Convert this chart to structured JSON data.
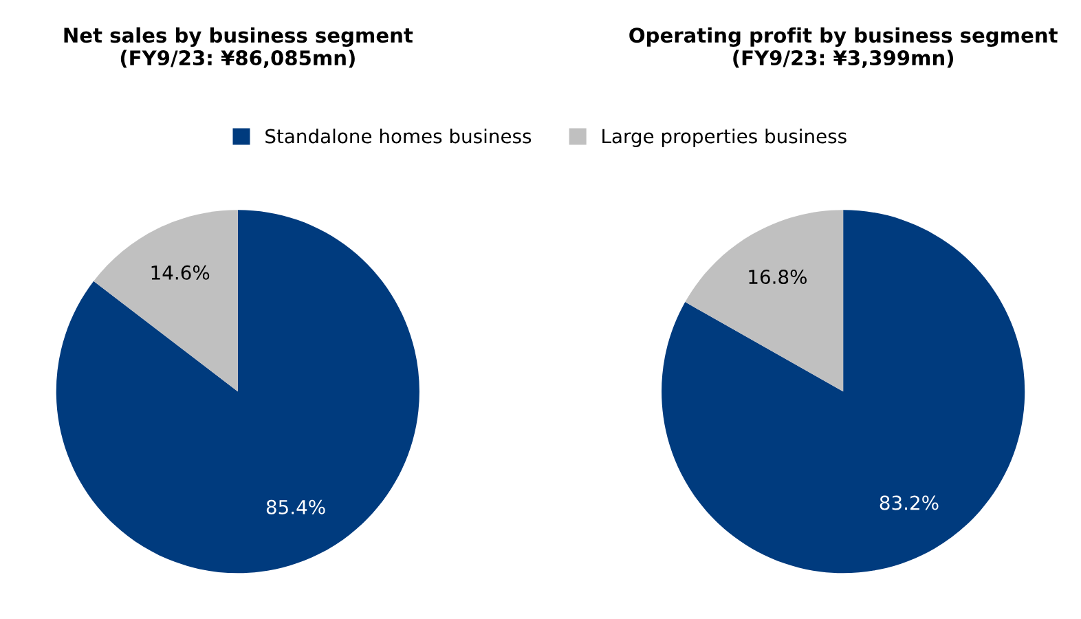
{
  "chart_data": [
    {
      "type": "pie",
      "title": "Net sales by business segment\n(FY9/23: ¥86,085mn)",
      "categories": [
        "Standalone homes business",
        "Large properties business"
      ],
      "values": [
        85.4,
        14.6
      ],
      "colors": [
        "#003b7e",
        "#c0c0c0"
      ],
      "value_labels": [
        "85.4%",
        "14.6%"
      ],
      "legend": "top"
    },
    {
      "type": "pie",
      "title": "Operating profit by business segment\n(FY9/23: ¥3,399mn)",
      "categories": [
        null,
        null
      ],
      "values": [
        83.2,
        16.8
      ],
      "colors": [
        "#003b7e",
        "#c0c0c0"
      ],
      "value_labels": [
        "83.2%",
        "16.8%"
      ]
    }
  ]
}
